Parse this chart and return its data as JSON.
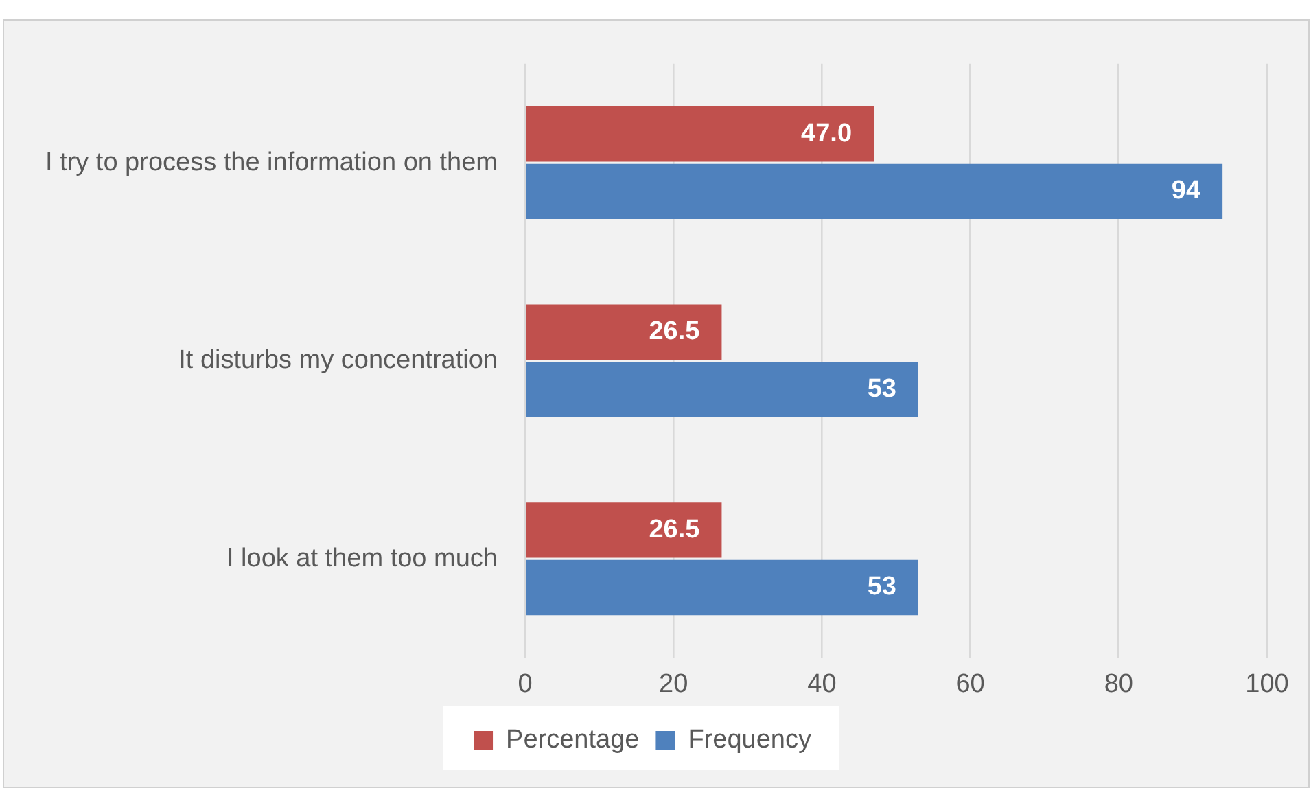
{
  "chart_data": {
    "type": "bar",
    "orientation": "horizontal",
    "categories": [
      "I try to process the information on them",
      "It disturbs my concentration",
      "I look at them too much"
    ],
    "series": [
      {
        "name": "Percentage",
        "color": "#c0504d",
        "values": [
          47.0,
          26.5,
          26.5
        ],
        "value_labels": [
          "47.0",
          "26.5",
          "26.5"
        ]
      },
      {
        "name": "Frequency",
        "color": "#4f81bd",
        "values": [
          94,
          53,
          53
        ],
        "value_labels": [
          "94",
          "53",
          "53"
        ]
      }
    ],
    "xlim": [
      0,
      100
    ],
    "xticks": [
      0,
      20,
      40,
      60,
      80,
      100
    ],
    "grid": "x",
    "legend": "bottom"
  }
}
